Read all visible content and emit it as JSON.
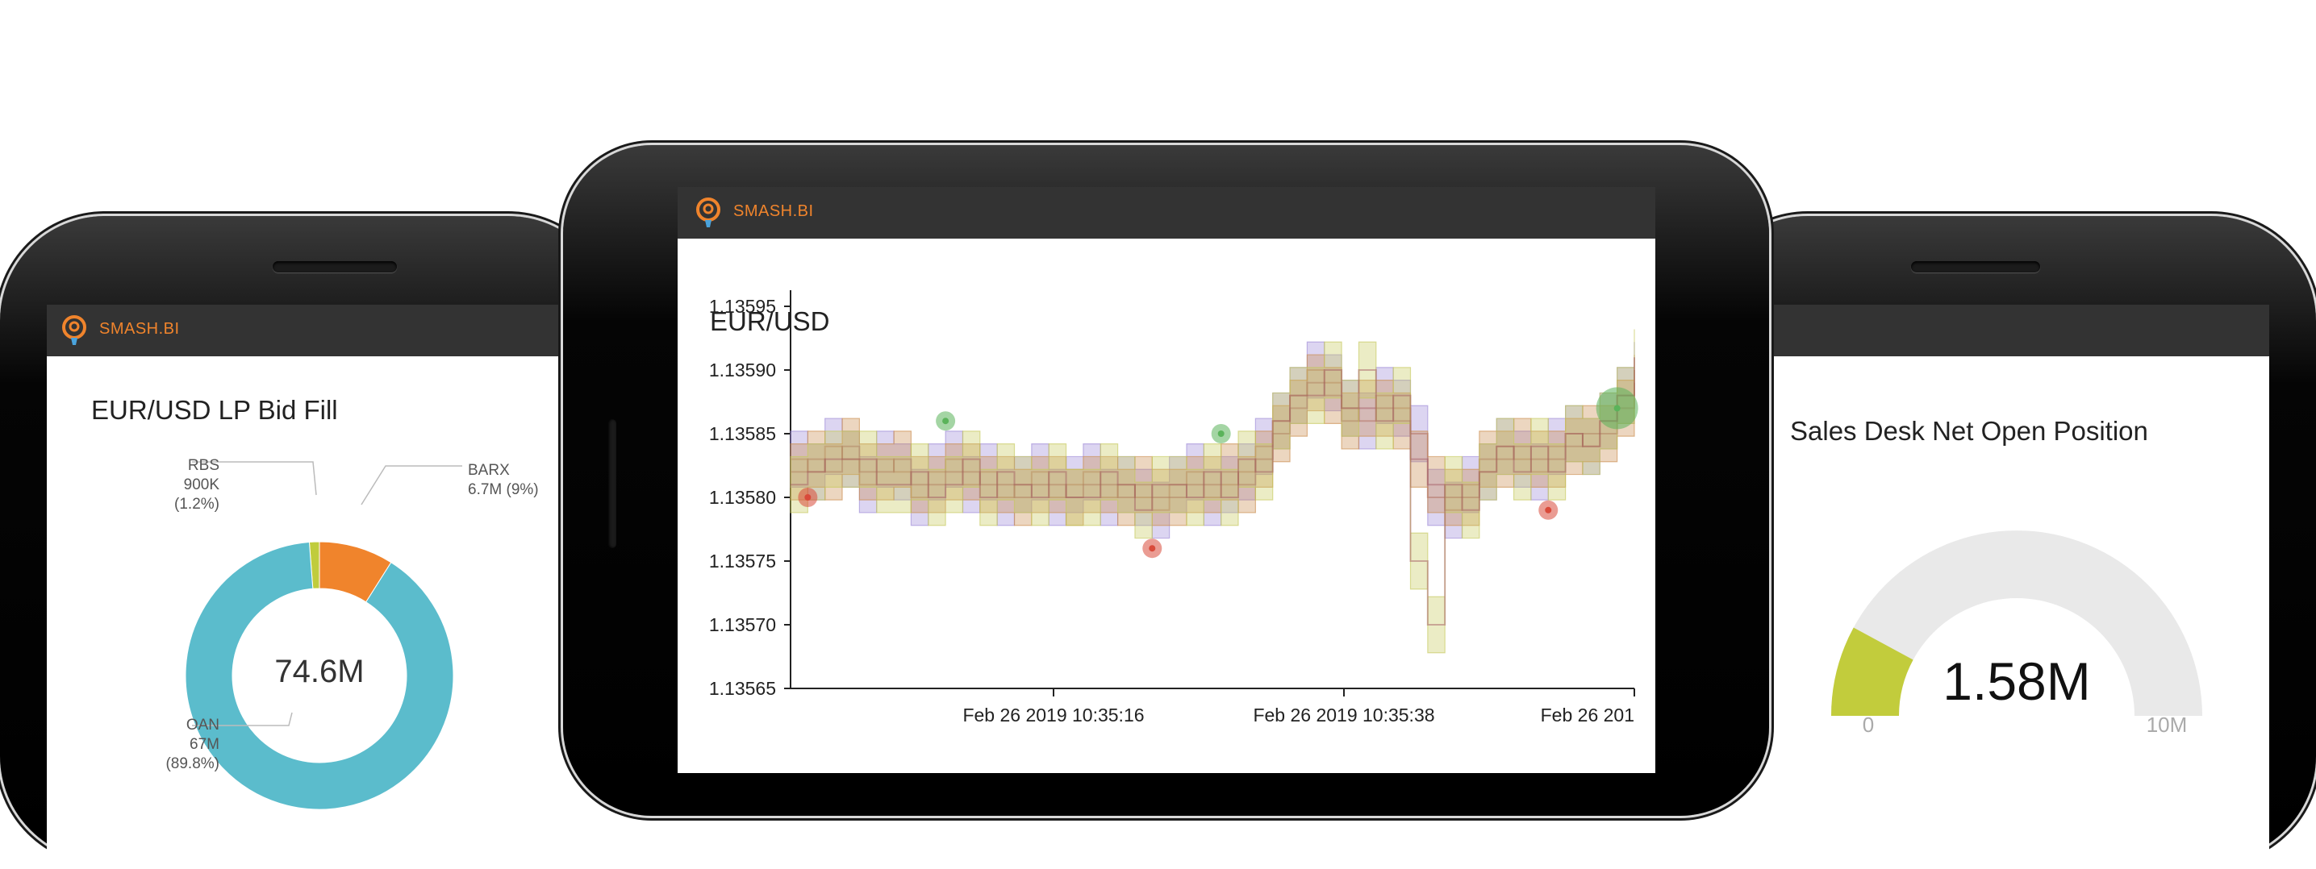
{
  "brand": "SMASH.BI",
  "left_panel": {
    "title": "EUR/USD LP Bid Fill",
    "center_value": "74.6M",
    "chart_data": {
      "type": "pie",
      "title": "EUR/USD LP Bid Fill",
      "center_label": "74.6M",
      "slices": [
        {
          "name": "OAN",
          "value_label": "67M",
          "pct_label": "(89.8%)",
          "value": 67.0,
          "pct": 89.8,
          "color": "#5bbccc"
        },
        {
          "name": "BARX",
          "value_label": "6.7M (9%)",
          "value": 6.7,
          "pct": 9.0,
          "color": "#f0842c"
        },
        {
          "name": "RBS",
          "value_label": "900K",
          "pct_label": "(1.2%)",
          "value": 0.9,
          "pct": 1.2,
          "color": "#c0cc3c"
        }
      ]
    }
  },
  "center_panel": {
    "title": "EUR/USD",
    "chart_data": {
      "type": "line",
      "title": "EUR/USD",
      "ylim": [
        1.13565,
        1.13595
      ],
      "y_ticks": [
        "1.13595",
        "1.13590",
        "1.13585",
        "1.13580",
        "1.13575",
        "1.13570",
        "1.13565"
      ],
      "x_ticks": [
        "Feb 26 2019 10:35:16",
        "Feb 26 2019 10:35:38",
        "Feb 26 201"
      ],
      "series": [
        {
          "color": "#9b87d6",
          "values": [
            1.13583,
            1.13582,
            1.13584,
            1.13583,
            1.13581,
            1.13583,
            1.13582,
            1.1358,
            1.13582,
            1.13583,
            1.13581,
            1.13582,
            1.1358,
            1.13581,
            1.13582,
            1.1358,
            1.13581,
            1.13582,
            1.1358,
            1.13581,
            1.1358,
            1.13579,
            1.13581,
            1.13582,
            1.1358,
            1.13581,
            1.13582,
            1.13584,
            1.13586,
            1.13588,
            1.1359,
            1.13589,
            1.13587,
            1.13586,
            1.13588,
            1.13587,
            1.13585,
            1.1358,
            1.13579,
            1.13581,
            1.13582,
            1.13584,
            1.13583,
            1.13582,
            1.13584,
            1.13585,
            1.13584,
            1.13586,
            1.13588,
            1.1359
          ]
        },
        {
          "color": "#c98a4a",
          "values": [
            1.13582,
            1.13583,
            1.13582,
            1.13584,
            1.13582,
            1.13582,
            1.13583,
            1.13581,
            1.13581,
            1.13582,
            1.13582,
            1.13581,
            1.13581,
            1.1358,
            1.13581,
            1.13581,
            1.1358,
            1.13581,
            1.13581,
            1.1358,
            1.13581,
            1.1358,
            1.1358,
            1.13581,
            1.13581,
            1.13582,
            1.13581,
            1.13583,
            1.13585,
            1.13587,
            1.13589,
            1.13588,
            1.13586,
            1.13587,
            1.13587,
            1.13586,
            1.13583,
            1.13581,
            1.1358,
            1.1358,
            1.13583,
            1.13583,
            1.13584,
            1.13583,
            1.13583,
            1.13584,
            1.13585,
            1.13585,
            1.13587,
            1.13589
          ]
        },
        {
          "color": "#c5c85a",
          "values": [
            1.13581,
            1.13582,
            1.13583,
            1.13583,
            1.13583,
            1.13581,
            1.13581,
            1.13582,
            1.1358,
            1.13581,
            1.13583,
            1.1358,
            1.13582,
            1.13581,
            1.1358,
            1.13582,
            1.1358,
            1.1358,
            1.13582,
            1.13581,
            1.13579,
            1.13581,
            1.13581,
            1.1358,
            1.13582,
            1.1358,
            1.13583,
            1.13582,
            1.13586,
            1.13588,
            1.13588,
            1.1359,
            1.13587,
            1.1359,
            1.13586,
            1.13588,
            1.13575,
            1.1357,
            1.13581,
            1.13579,
            1.13582,
            1.13584,
            1.13582,
            1.13584,
            1.13582,
            1.13585,
            1.13584,
            1.13586,
            1.13588,
            1.13591
          ]
        }
      ],
      "fills": [
        {
          "x": 1,
          "y": 1.1358,
          "color": "#d94a3a"
        },
        {
          "x": 9,
          "y": 1.13586,
          "color": "#5ab35a"
        },
        {
          "x": 21,
          "y": 1.13576,
          "color": "#d94a3a"
        },
        {
          "x": 25,
          "y": 1.13585,
          "color": "#5ab35a"
        },
        {
          "x": 44,
          "y": 1.13579,
          "color": "#d94a3a"
        },
        {
          "x": 48,
          "y": 1.13587,
          "color": "#5ab35a"
        }
      ]
    }
  },
  "right_panel": {
    "title": "Sales Desk Net Open Position",
    "value": "1.58M",
    "min_label": "0",
    "max_label": "10M",
    "chart_data": {
      "type": "gauge",
      "title": "Sales Desk Net Open Position",
      "value": 1.58,
      "min": 0,
      "max": 10,
      "value_label": "1.58M",
      "fill_color": "#c2cc3c",
      "track_color": "#e9e9e9"
    }
  }
}
